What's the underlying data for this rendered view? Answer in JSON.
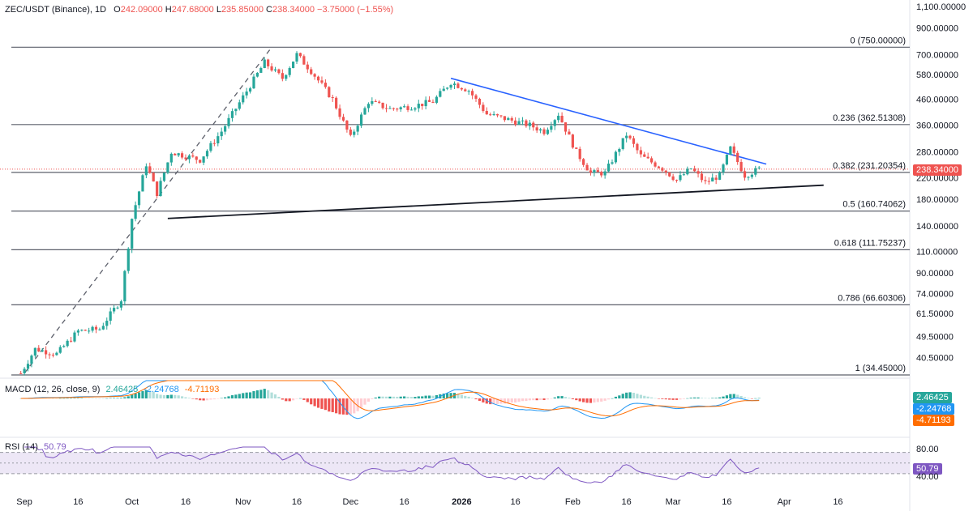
{
  "header": {
    "symbol": "ZEC/USDT (Binance), 1D",
    "open_label": "O",
    "open": "242.09000",
    "high_label": "H",
    "high": "247.68000",
    "low_label": "L",
    "low": "235.85000",
    "close_label": "C",
    "close": "238.34000",
    "change": "−3.75000 (−1.55%)"
  },
  "price_tag": "238.34000",
  "macd": {
    "label": "MACD (12, 26, close, 9)",
    "hist": "2.46425",
    "macd": "-2.24768",
    "signal": "-4.71193",
    "tag_hist": "2.46425",
    "tag_macd": "-2.24768",
    "tag_signal": "-4.71193"
  },
  "rsi": {
    "label": "RSI (14)",
    "value": "50.79",
    "tag": "50.79",
    "upper": "80.00",
    "lower": "40.00"
  },
  "colors": {
    "up": "#26a69a",
    "down": "#ef5350",
    "trend_blue": "#2962ff",
    "macd_line": "#2196f3",
    "signal_line": "#ff6d00",
    "rsi_line": "#7e57c2",
    "rsi_band": "#ede7f6",
    "fib_line": "#5d606b"
  },
  "chart_data": {
    "type": "candlestick",
    "title": "ZEC/USDT (Binance), 1D",
    "y_axis_ticks": [
      "1,100.00000",
      "900.00000",
      "700.00000",
      "580.00000",
      "460.00000",
      "360.00000",
      "280.00000",
      "220.00000",
      "180.00000",
      "140.00000",
      "110.00000",
      "90.00000",
      "74.00000",
      "61.50000",
      "49.50000",
      "40.50000"
    ],
    "x_axis_ticks": [
      "Sep",
      "16",
      "Oct",
      "16",
      "Nov",
      "16",
      "Dec",
      "16",
      "2026",
      "16",
      "Feb",
      "16",
      "Mar",
      "16",
      "Apr",
      "16"
    ],
    "fib_levels": [
      {
        "ratio": "0",
        "price": 750.0,
        "label": "0 (750.00000)"
      },
      {
        "ratio": "0.236",
        "price": 362.51308,
        "label": "0.236 (362.51308)"
      },
      {
        "ratio": "0.382",
        "price": 231.20354,
        "label": "0.382 (231.20354)"
      },
      {
        "ratio": "0.5",
        "price": 160.74062,
        "label": "0.5 (160.74062)"
      },
      {
        "ratio": "0.618",
        "price": 111.75237,
        "label": "0.618 (111.75237)"
      },
      {
        "ratio": "0.786",
        "price": 66.60306,
        "label": "0.786 (66.60306)"
      },
      {
        "ratio": "1",
        "price": 34.45,
        "label": "1 (34.45000)"
      }
    ],
    "price_path": [
      {
        "date": "2025-08-31",
        "close": 35
      },
      {
        "date": "2025-09-04",
        "close": 44
      },
      {
        "date": "2025-09-10",
        "close": 42
      },
      {
        "date": "2025-09-16",
        "close": 52
      },
      {
        "date": "2025-09-22",
        "close": 53
      },
      {
        "date": "2025-09-28",
        "close": 70
      },
      {
        "date": "2025-10-01",
        "close": 150
      },
      {
        "date": "2025-10-05",
        "close": 250
      },
      {
        "date": "2025-10-08",
        "close": 190
      },
      {
        "date": "2025-10-12",
        "close": 280
      },
      {
        "date": "2025-10-20",
        "close": 260
      },
      {
        "date": "2025-10-26",
        "close": 340
      },
      {
        "date": "2025-11-01",
        "close": 470
      },
      {
        "date": "2025-11-07",
        "close": 650
      },
      {
        "date": "2025-11-12",
        "close": 560
      },
      {
        "date": "2025-11-16",
        "close": 700
      },
      {
        "date": "2025-11-20",
        "close": 600
      },
      {
        "date": "2025-11-26",
        "close": 460
      },
      {
        "date": "2025-12-01",
        "close": 320
      },
      {
        "date": "2025-12-06",
        "close": 450
      },
      {
        "date": "2025-12-12",
        "close": 420
      },
      {
        "date": "2025-12-18",
        "close": 430
      },
      {
        "date": "2025-12-24",
        "close": 450
      },
      {
        "date": "2025-12-29",
        "close": 540
      },
      {
        "date": "2026-01-03",
        "close": 500
      },
      {
        "date": "2026-01-08",
        "close": 400
      },
      {
        "date": "2026-01-14",
        "close": 380
      },
      {
        "date": "2026-01-20",
        "close": 360
      },
      {
        "date": "2026-01-24",
        "close": 340
      },
      {
        "date": "2026-01-28",
        "close": 400
      },
      {
        "date": "2026-02-02",
        "close": 280
      },
      {
        "date": "2026-02-06",
        "close": 230
      },
      {
        "date": "2026-02-10",
        "close": 230
      },
      {
        "date": "2026-02-16",
        "close": 330
      },
      {
        "date": "2026-02-20",
        "close": 270
      },
      {
        "date": "2026-02-26",
        "close": 240
      },
      {
        "date": "2026-03-02",
        "close": 215
      },
      {
        "date": "2026-03-06",
        "close": 240
      },
      {
        "date": "2026-03-10",
        "close": 210
      },
      {
        "date": "2026-03-14",
        "close": 225
      },
      {
        "date": "2026-03-17",
        "close": 290
      },
      {
        "date": "2026-03-21",
        "close": 225
      },
      {
        "date": "2026-03-25",
        "close": 238.34
      }
    ],
    "last": {
      "open": 242.09,
      "high": 247.68,
      "low": 235.85,
      "close": 238.34,
      "change": -3.75,
      "change_pct": -1.55
    }
  }
}
